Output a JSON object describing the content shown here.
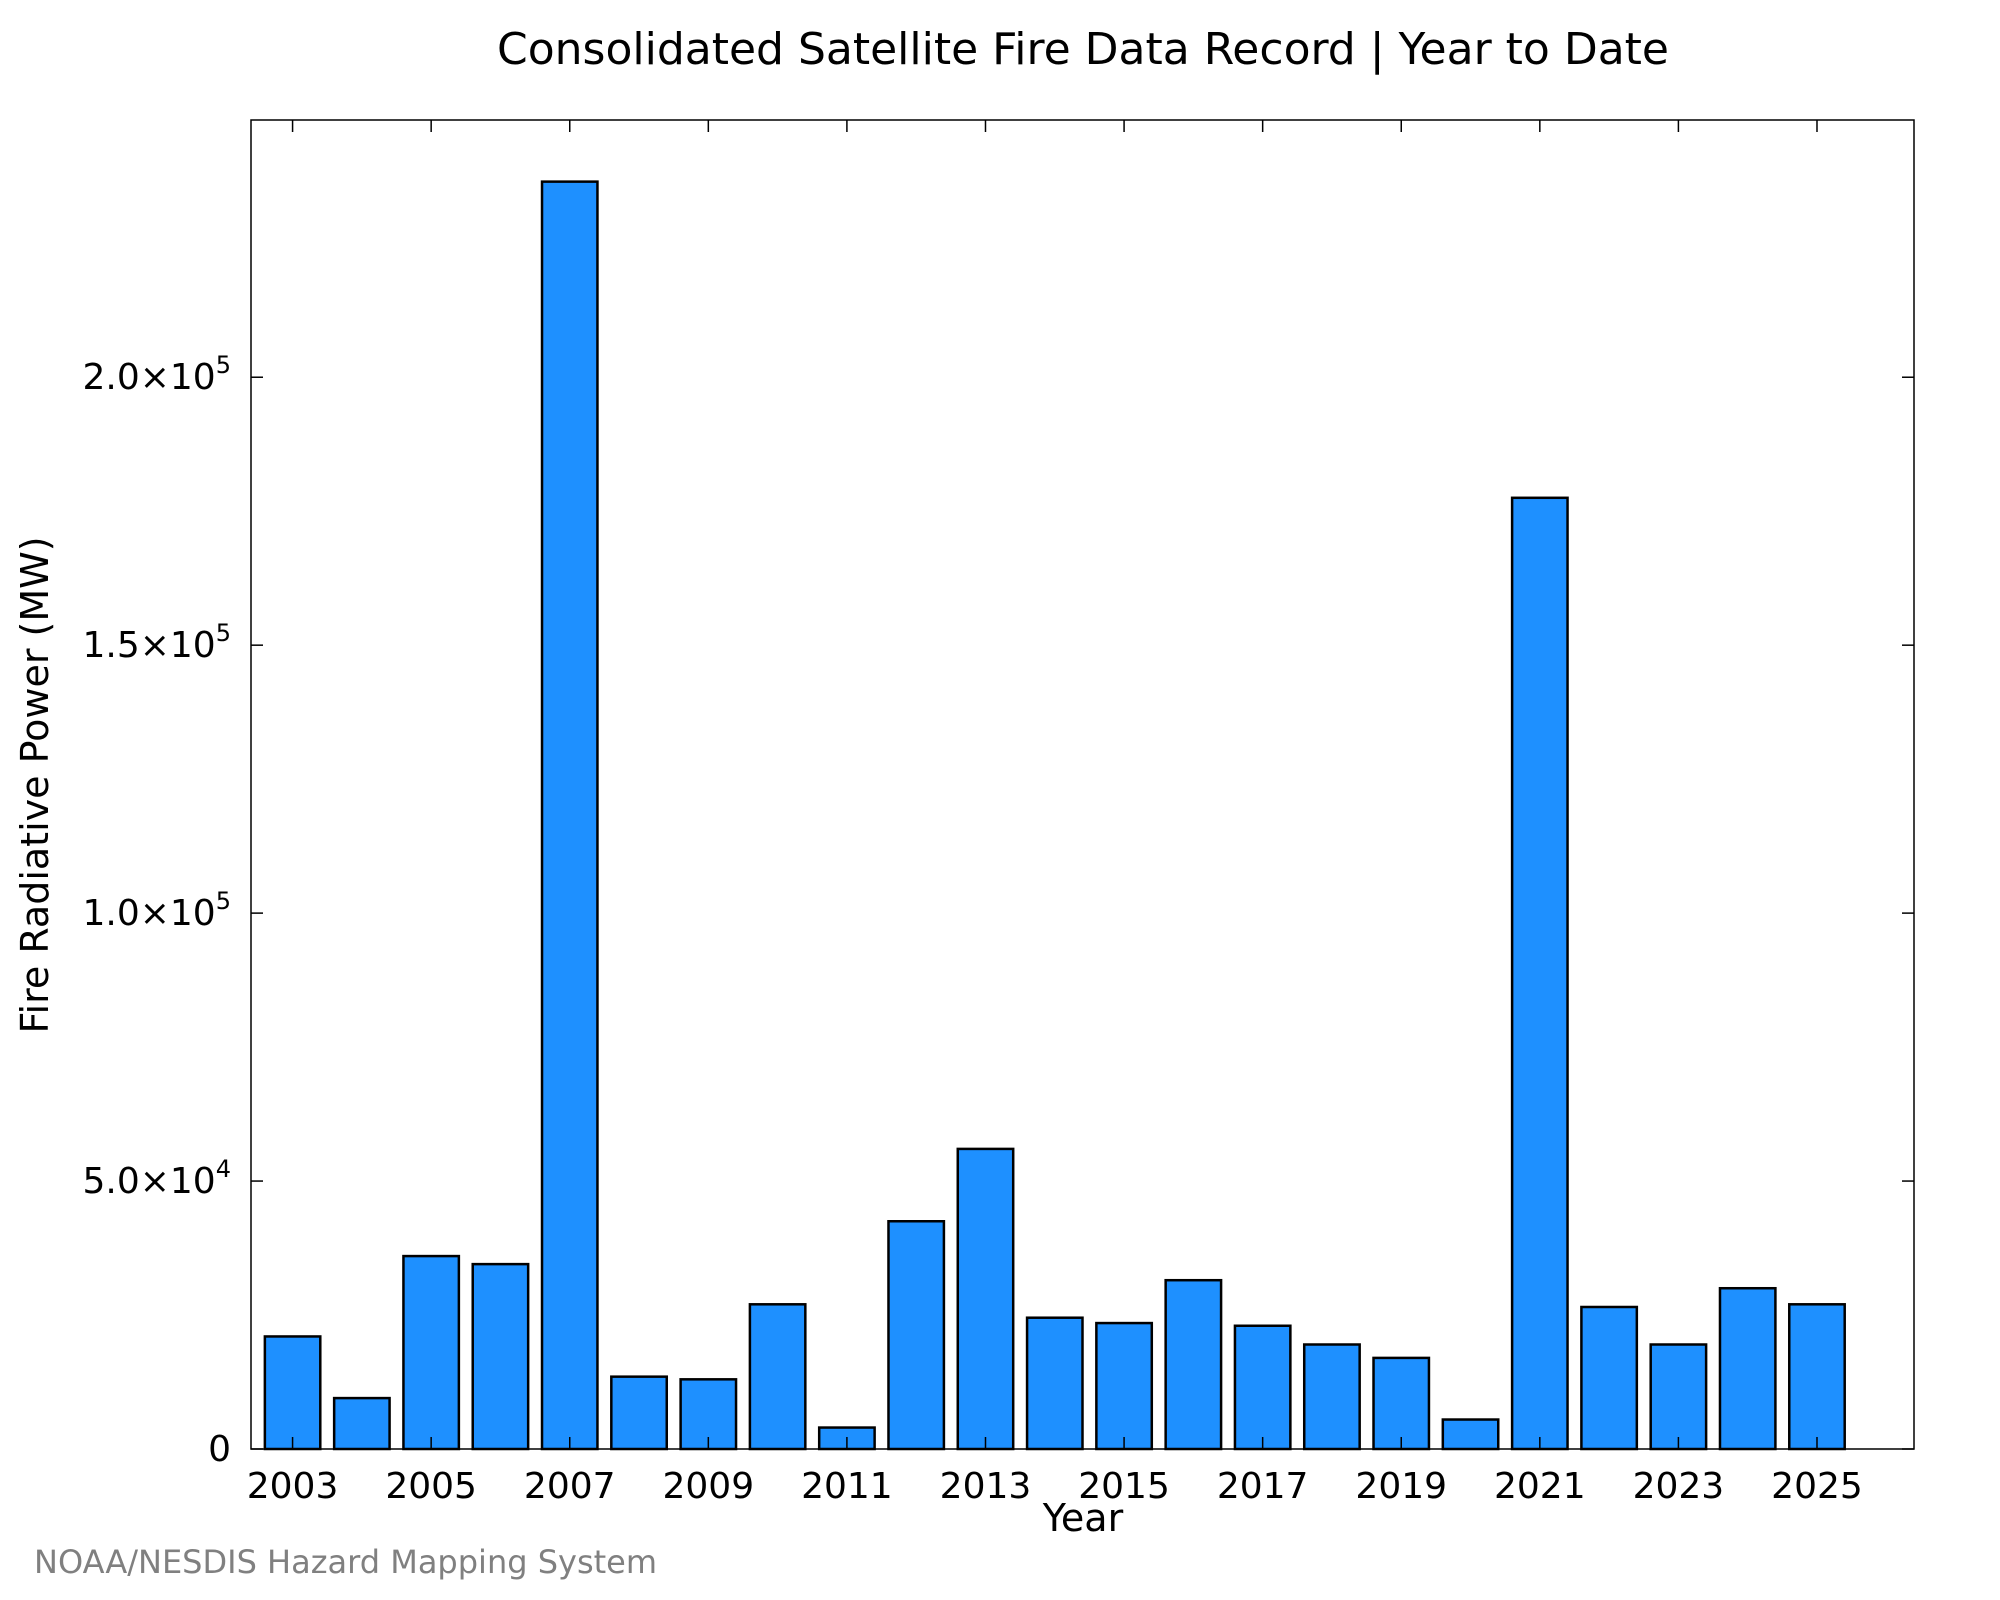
{
  "chart_data": {
    "type": "bar",
    "title": "Consolidated Satellite Fire Data Record | Year to Date",
    "xlabel": "Year",
    "ylabel": "Fire Radiative Power (MW)",
    "categories": [
      "2003",
      "2004",
      "2005",
      "2006",
      "2007",
      "2008",
      "2009",
      "2010",
      "2011",
      "2012",
      "2013",
      "2014",
      "2015",
      "2016",
      "2017",
      "2018",
      "2019",
      "2020",
      "2021",
      "2022",
      "2023",
      "2024",
      "2025"
    ],
    "values": [
      21000,
      9500,
      36000,
      34500,
      236500,
      13500,
      13000,
      27000,
      4000,
      42500,
      56000,
      24500,
      23500,
      31500,
      23000,
      19500,
      17000,
      5500,
      177500,
      26500,
      19500,
      30000,
      27000
    ],
    "x_tick_labels": [
      "2003",
      "2005",
      "2007",
      "2009",
      "2011",
      "2013",
      "2015",
      "2017",
      "2019",
      "2021",
      "2023",
      "2025"
    ],
    "y_ticks": [
      {
        "value": 0,
        "mantissa": "0",
        "exponent": ""
      },
      {
        "value": 50000,
        "mantissa": "5.0×10",
        "exponent": "4"
      },
      {
        "value": 100000,
        "mantissa": "1.0×10",
        "exponent": "5"
      },
      {
        "value": 150000,
        "mantissa": "1.5×10",
        "exponent": "5"
      },
      {
        "value": 200000,
        "mantissa": "2.0×10",
        "exponent": "5"
      }
    ],
    "ylim": [
      0,
      248000
    ],
    "xlim": [
      2002.4,
      2026.4
    ],
    "grid": false,
    "bar_color": "#1E90FF",
    "bar_edge_color": "#000000",
    "credit": "NOAA/NESDIS Hazard Mapping System"
  }
}
